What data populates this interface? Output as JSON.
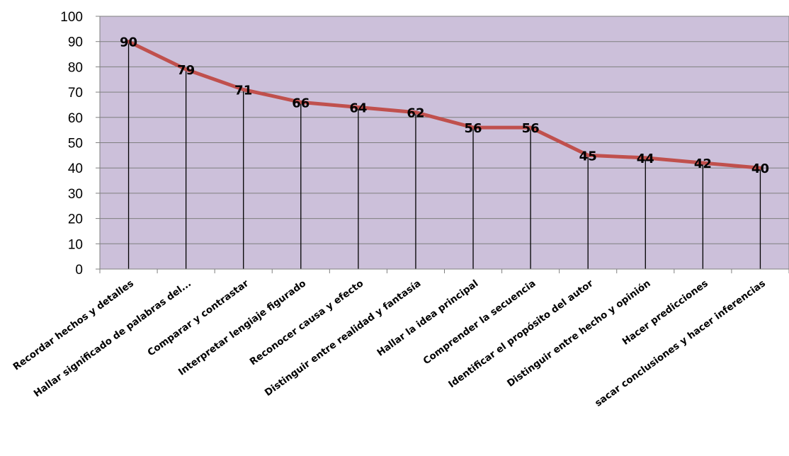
{
  "chart_data": {
    "type": "line",
    "categories": [
      "Recordar hechos y detalles",
      "Hallar significado de palabras del...",
      "Comparar y contrastar",
      "Interpretar lengiaje figurado",
      "Reconocer causa y efecto",
      "Distinguir entre realidad y fantasía",
      "Hallar la idea principal",
      "Comprender la secuencia",
      "Identificar el propósito del autor",
      "Distinguir entre hecho y opinión",
      "Hacer predicciones",
      "sacar conclusiones y hacer inferencias"
    ],
    "series": [
      {
        "values": [
          90,
          79,
          71,
          66,
          64,
          62,
          56,
          56,
          45,
          44,
          42,
          40
        ],
        "color": "#c0504d"
      }
    ],
    "data_labels": [
      "90",
      "79",
      "71",
      "66",
      "64",
      "62",
      "56",
      "56",
      "45",
      "44",
      "42",
      "40"
    ],
    "yticks": [
      "0",
      "10",
      "20",
      "30",
      "40",
      "50",
      "60",
      "70",
      "80",
      "90",
      "100"
    ],
    "ylim": [
      0,
      100
    ],
    "title": "",
    "xlabel": "",
    "ylabel": "",
    "grid": true,
    "drop_lines": true,
    "plot_background": "#ccc0da",
    "legend": "none"
  }
}
